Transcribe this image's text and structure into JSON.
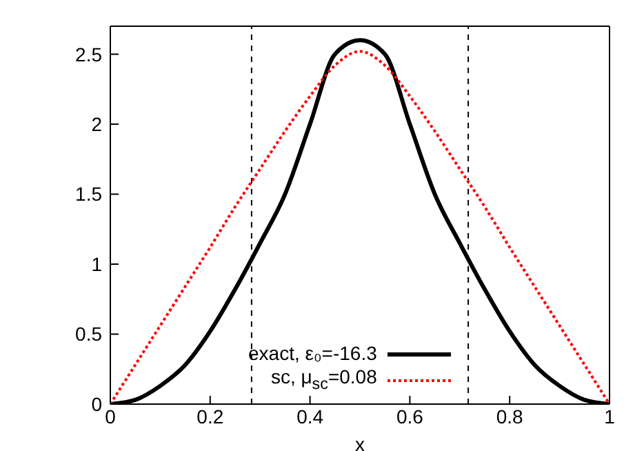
{
  "chart_data": {
    "type": "line",
    "xlabel": "x",
    "x": [
      0,
      0.05,
      0.1,
      0.15,
      0.2,
      0.25,
      0.3,
      0.35,
      0.4,
      0.45,
      0.5,
      0.55,
      0.6,
      0.65,
      0.7,
      0.75,
      0.8,
      0.85,
      0.9,
      0.95,
      1
    ],
    "series": [
      {
        "name": "exact, ε₀=-16.3",
        "color": "#000000",
        "line_style": "solid",
        "values": [
          0,
          0.03,
          0.13,
          0.28,
          0.52,
          0.82,
          1.15,
          1.5,
          2.0,
          2.5,
          2.6,
          2.5,
          2.0,
          1.5,
          1.15,
          0.82,
          0.52,
          0.28,
          0.13,
          0.03,
          0
        ]
      },
      {
        "name": "sc,  μ$_{sc}$=0.08",
        "color": "#ff0000",
        "line_style": "dotted",
        "values": [
          0,
          0.28,
          0.56,
          0.84,
          1.12,
          1.41,
          1.68,
          1.95,
          2.2,
          2.42,
          2.52,
          2.42,
          2.2,
          1.95,
          1.68,
          1.41,
          1.12,
          0.84,
          0.56,
          0.28,
          0
        ]
      }
    ],
    "xlim": [
      0,
      1
    ],
    "xticks": [
      0,
      0.2,
      0.4,
      0.6,
      0.8,
      1
    ],
    "ylim": [
      0,
      2.7
    ],
    "yticks": [
      0,
      0.5,
      1,
      1.5,
      2,
      2.5
    ],
    "ref_lines": [
      {
        "axis": "x",
        "value": 0.283,
        "color": "#000000",
        "line_style": "dashed"
      },
      {
        "axis": "x",
        "value": 0.717,
        "color": "#000000",
        "line_style": "dashed"
      }
    ],
    "grid": false,
    "legend": "bottom",
    "marker": "none"
  }
}
